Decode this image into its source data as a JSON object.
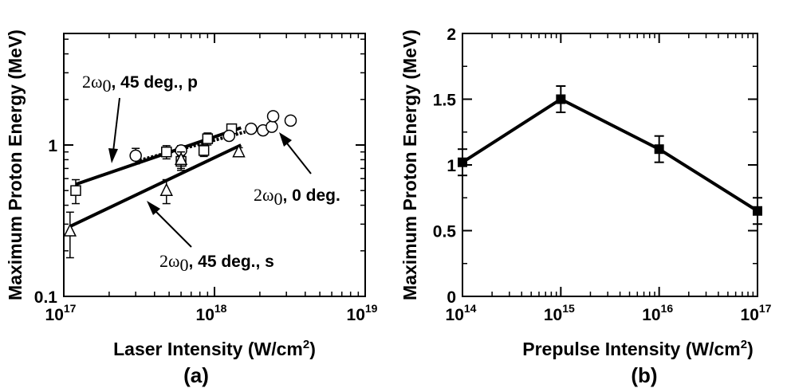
{
  "chart_data": [
    {
      "type": "scatter",
      "panel_label": "(a)",
      "xlabel": "Laser Intensity (W/cm",
      "xlabel_sup": "2",
      "xlabel_end": ")",
      "ylabel": "Maximum Proton Energy (MeV)",
      "xscale": "log",
      "yscale": "log",
      "xlim": [
        1e+17,
        1e+19
      ],
      "ylim": [
        0.1,
        5
      ],
      "xticks": [
        {
          "base": "10",
          "exp": "17"
        },
        {
          "base": "10",
          "exp": "18"
        },
        {
          "base": "10",
          "exp": "19"
        }
      ],
      "yticks": [
        "0.1",
        "1"
      ],
      "annotations": [
        {
          "prefix": "2ω",
          "sub": "0",
          "text": ", 45 deg., p"
        },
        {
          "prefix": "2ω",
          "sub": "0",
          "text": ", 0 deg."
        },
        {
          "prefix": "2ω",
          "sub": "0",
          "text": ", 45 deg., s"
        }
      ],
      "series": [
        {
          "marker": "square-open",
          "points": [
            {
              "x": 1.2e+17,
              "y": 0.5,
              "err": 0.09
            },
            {
              "x": 4.8e+17,
              "y": 0.9,
              "err": 0.09
            },
            {
              "x": 6e+17,
              "y": 0.78,
              "err": 0.1
            },
            {
              "x": 8.5e+17,
              "y": 0.92,
              "err": 0.08
            },
            {
              "x": 9e+17,
              "y": 1.1,
              "err": 0.1
            },
            {
              "x": 1.3e+18,
              "y": 1.28,
              "err": 0.08
            }
          ],
          "fit": [
            [
              1.2e+17,
              0.55
            ],
            [
              1.5e+18,
              1.3
            ]
          ]
        },
        {
          "marker": "circle-open",
          "points": [
            {
              "x": 3e+17,
              "y": 0.85,
              "err": 0.1
            },
            {
              "x": 6e+17,
              "y": 0.92,
              "err": 0.07
            },
            {
              "x": 1.25e+18,
              "y": 1.15,
              "err": 0.06
            },
            {
              "x": 1.75e+18,
              "y": 1.28,
              "err": 0.06
            },
            {
              "x": 2.1e+18,
              "y": 1.25,
              "err": 0.06
            },
            {
              "x": 2.4e+18,
              "y": 1.32,
              "err": 0.06
            },
            {
              "x": 2.45e+18,
              "y": 1.55,
              "err": 0.08
            },
            {
              "x": 3.2e+18,
              "y": 1.45,
              "err": 0.06
            }
          ],
          "fit": [
            [
              3e+17,
              0.78
            ],
            [
              1.6e+18,
              1.22
            ]
          ]
        },
        {
          "marker": "triangle-open",
          "points": [
            {
              "x": 1.1e+17,
              "y": 0.27,
              "err": 0.09
            },
            {
              "x": 4.8e+17,
              "y": 0.5,
              "err": 0.09
            },
            {
              "x": 6e+17,
              "y": 0.8,
              "err": 0.1
            },
            {
              "x": 1.45e+18,
              "y": 0.9,
              "err": 0.06
            }
          ],
          "fit": [
            [
              1.1e+17,
              0.29
            ],
            [
              1.5e+18,
              1.0
            ]
          ]
        }
      ]
    },
    {
      "type": "line",
      "panel_label": "(b)",
      "xlabel": "Prepulse Intensity (W/cm",
      "xlabel_sup": "2",
      "xlabel_end": ")",
      "ylabel": "Maximum Proton Energy (MeV)",
      "xscale": "log",
      "xlim": [
        100000000000000.0,
        1e+17
      ],
      "ylim": [
        0,
        2
      ],
      "xticks": [
        {
          "base": "10",
          "exp": "14"
        },
        {
          "base": "10",
          "exp": "15"
        },
        {
          "base": "10",
          "exp": "16"
        },
        {
          "base": "10",
          "exp": "17"
        }
      ],
      "yticks": [
        "0",
        "0.5",
        "1",
        "1.5",
        "2"
      ],
      "series": [
        {
          "marker": "square-filled",
          "points": [
            {
              "x": 100000000000000.0,
              "y": 1.02,
              "err": 0.1
            },
            {
              "x": 1000000000000000.0,
              "y": 1.5,
              "err": 0.1
            },
            {
              "x": 1e+16,
              "y": 1.12,
              "err": 0.1
            },
            {
              "x": 1e+17,
              "y": 0.65,
              "err": 0.1
            }
          ]
        }
      ]
    }
  ]
}
